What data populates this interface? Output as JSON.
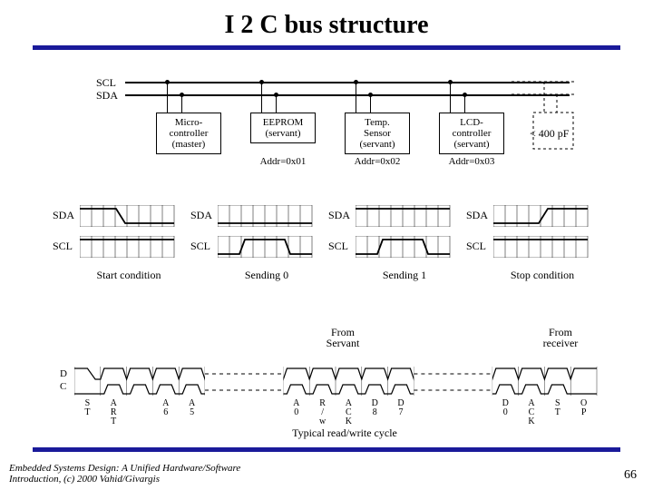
{
  "title": "I 2 C bus structure",
  "hr_color": "#1a1a9a",
  "bus": {
    "labels": [
      "SCL",
      "SDA"
    ],
    "cap_note": "< 400 pF",
    "devices": [
      {
        "name_lines": "Micro-\ncontroller\n(master)",
        "addr": ""
      },
      {
        "name_lines": "EEPROM\n(servant)",
        "addr": "Addr=0x01"
      },
      {
        "name_lines": "Temp.\nSensor\n(servant)",
        "addr": "Addr=0x02"
      },
      {
        "name_lines": "LCD-\ncontroller\n(servant)",
        "addr": "Addr=0x03"
      }
    ]
  },
  "waves": {
    "captions": [
      "Start condition",
      "Sending 0",
      "Sending 1",
      "Stop condition"
    ],
    "row_labels": [
      "SDA",
      "SCL"
    ],
    "from_labels": [
      "From\nServant",
      "From\nreceiver"
    ]
  },
  "timing": {
    "row_labels": [
      "D",
      "C"
    ],
    "bits": [
      "S\nT",
      "A\nR\nT",
      "",
      "A\n6",
      "A\n5",
      "",
      "",
      "",
      "A\n0",
      "R\n/\nw",
      "A\nC\nK",
      "D\n8",
      "D\n7",
      "",
      "",
      "",
      "D\n0",
      "A\nC\nK",
      "S\nT",
      "O\nP"
    ],
    "caption": "Typical read/write cycle"
  },
  "footer": "Embedded Systems Design: A Unified Hardware/Software Introduction, (c) 2000 Vahid/Givargis",
  "page": "66"
}
